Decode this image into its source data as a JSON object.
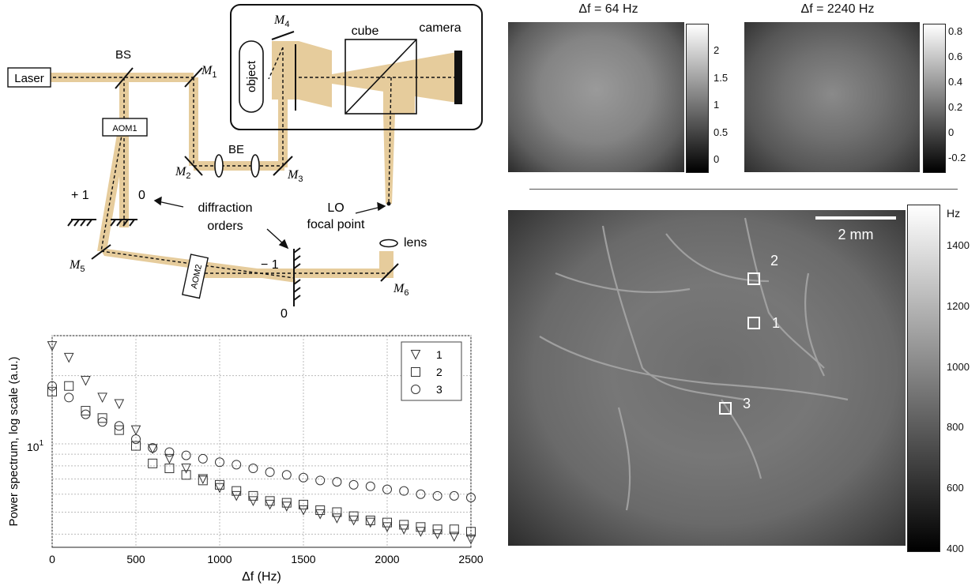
{
  "optics": {
    "laser": "Laser",
    "bs": "BS",
    "m1": "M",
    "m1_sub": "1",
    "m2": "M",
    "m2_sub": "2",
    "m3": "M",
    "m3_sub": "3",
    "m4": "M",
    "m4_sub": "4",
    "m5": "M",
    "m5_sub": "5",
    "m6": "M",
    "m6_sub": "6",
    "aom1": "AOM1",
    "aom2": "AOM2",
    "be": "BE",
    "object": "object",
    "cube": "cube",
    "camera": "camera",
    "plus1": "+ 1",
    "zero_a": "0",
    "minus1": "− 1",
    "zero_b": "0",
    "diffraction": "diffraction",
    "orders": "orders",
    "lo": "LO",
    "focal_point": "focal point",
    "lens": "lens"
  },
  "maps": {
    "left_title": "Δf = 64 Hz",
    "right_title": "Δf = 2240 Hz",
    "left_ticks": [
      "2",
      "1.5",
      "1",
      "0.5",
      "0"
    ],
    "right_ticks": [
      "0.8",
      "0.6",
      "0.4",
      "0.2",
      "0",
      "-0.2"
    ]
  },
  "main_map": {
    "scale_label": "2 mm",
    "unit": "Hz",
    "ticks": [
      "1400",
      "1200",
      "1000",
      "800",
      "600",
      "400"
    ],
    "roi_labels": [
      "2",
      "1",
      "3"
    ]
  },
  "chart_data": {
    "type": "scatter",
    "xlabel": "Δf (Hz)",
    "ylabel": "Power spectrum, log scale  (a.u.)",
    "yscale": "log",
    "xlim": [
      0,
      2500
    ],
    "xticks": [
      "0",
      "500",
      "1000",
      "1500",
      "2000",
      "2500"
    ],
    "ytick_label": "10",
    "ytick_exp": "1",
    "legend_position": "top-right",
    "series": [
      {
        "name": "1",
        "marker": "triangle-down",
        "x": [
          0,
          100,
          200,
          300,
          400,
          500,
          600,
          700,
          800,
          900,
          1000,
          1100,
          1200,
          1300,
          1400,
          1500,
          1600,
          1700,
          1800,
          1900,
          2000,
          2100,
          2200,
          2300,
          2400,
          2500
        ],
        "y": [
          27,
          24,
          19,
          16,
          15,
          11.5,
          9.5,
          8.6,
          7.8,
          7.0,
          6.4,
          5.9,
          5.6,
          5.4,
          5.3,
          5.1,
          4.9,
          4.7,
          4.6,
          4.5,
          4.3,
          4.2,
          4.1,
          4.0,
          3.9,
          3.8
        ]
      },
      {
        "name": "2",
        "marker": "square",
        "x": [
          0,
          100,
          200,
          300,
          400,
          500,
          600,
          700,
          800,
          900,
          1000,
          1100,
          1200,
          1300,
          1400,
          1500,
          1600,
          1700,
          1800,
          1900,
          2000,
          2100,
          2200,
          2300,
          2400,
          2500
        ],
        "y": [
          17,
          18,
          14,
          13,
          11.5,
          9.8,
          8.2,
          7.8,
          7.3,
          6.9,
          6.6,
          6.2,
          5.9,
          5.6,
          5.5,
          5.4,
          5.1,
          5.0,
          4.8,
          4.6,
          4.5,
          4.4,
          4.3,
          4.2,
          4.2,
          4.1
        ]
      },
      {
        "name": "3",
        "marker": "circle",
        "x": [
          0,
          100,
          200,
          300,
          400,
          500,
          600,
          700,
          800,
          900,
          1000,
          1100,
          1200,
          1300,
          1400,
          1500,
          1600,
          1700,
          1800,
          1900,
          2000,
          2100,
          2200,
          2300,
          2400,
          2500
        ],
        "y": [
          18,
          16,
          13.5,
          12.5,
          12,
          10.5,
          9.6,
          9.2,
          8.9,
          8.6,
          8.3,
          8.1,
          7.8,
          7.5,
          7.3,
          7.1,
          6.9,
          6.8,
          6.6,
          6.5,
          6.3,
          6.2,
          6.0,
          5.9,
          5.9,
          5.8
        ]
      }
    ]
  }
}
